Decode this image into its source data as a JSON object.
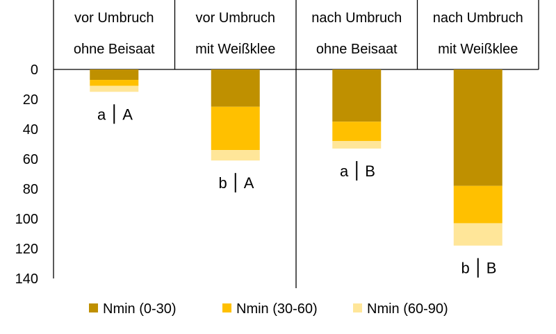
{
  "chart_data": {
    "type": "bar",
    "stacked": true,
    "y_inverted": true,
    "ylim": [
      0,
      140
    ],
    "yticks": [
      "0",
      "20",
      "40",
      "60",
      "80",
      "100",
      "120",
      "140"
    ],
    "ytick_values": [
      0,
      20,
      40,
      60,
      80,
      100,
      120,
      140
    ],
    "categories": [
      {
        "line1": "vor Umbruch",
        "line2": "ohne Beisaat"
      },
      {
        "line1": "vor Umbruch",
        "line2": "mit Weißklee"
      },
      {
        "line1": "nach Umbruch",
        "line2": "ohne Beisaat"
      },
      {
        "line1": "nach Umbruch",
        "line2": "mit Weißklee"
      }
    ],
    "series": [
      {
        "name": "Nmin (0-30)",
        "color": "#BF9000",
        "values": [
          7,
          25,
          35,
          78
        ]
      },
      {
        "name": "Nmin (30-60)",
        "color": "#FFC000",
        "values": [
          4,
          29,
          13,
          25
        ]
      },
      {
        "name": "Nmin (60-90)",
        "color": "#FFE699",
        "values": [
          4,
          7,
          5,
          15
        ]
      }
    ],
    "annotations": [
      {
        "lower": "a",
        "upper": "A"
      },
      {
        "lower": "b",
        "upper": "A"
      },
      {
        "lower": "a",
        "upper": "B"
      },
      {
        "lower": "b",
        "upper": "B"
      }
    ],
    "legend_position": "bottom"
  }
}
